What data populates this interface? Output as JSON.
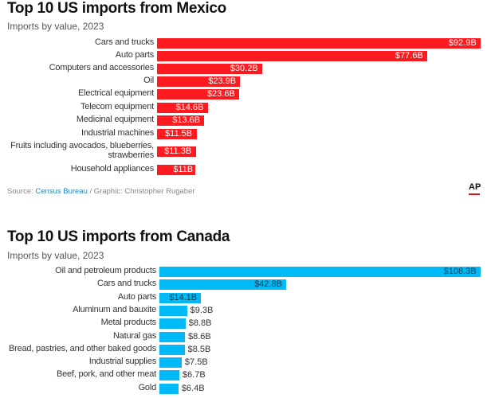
{
  "chart_data": [
    {
      "type": "bar",
      "orientation": "horizontal",
      "title": "Top 10 US imports from Mexico",
      "subtitle": "Imports by value, 2023",
      "color": "#fe1a1f",
      "label_color": "#ffffff",
      "categories": [
        "Cars and trucks",
        "Auto parts",
        "Computers and accessories",
        "Oil",
        "Electrical equipment",
        "Telecom equipment",
        "Medicinal equipment",
        "Industrial machines",
        "Fruits including avocados, blueberries, strawberries",
        "Household appliances"
      ],
      "values": [
        92.9,
        77.6,
        30.2,
        23.9,
        23.6,
        14.6,
        13.6,
        11.5,
        11.3,
        11
      ],
      "value_labels": [
        "$92.9B",
        "$77.6B",
        "$30.2B",
        "$23.9B",
        "$23.6B",
        "$14.6B",
        "$13.6B",
        "$11.5B",
        "$11.3B",
        "$11B"
      ],
      "unit": "billion USD"
    },
    {
      "type": "bar",
      "orientation": "horizontal",
      "title": "Top 10 US imports from Canada",
      "subtitle": "Imports by value, 2023",
      "color": "#00b9f7",
      "label_color": "#1a3a4a",
      "categories": [
        "Oil and petroleum products",
        "Cars and trucks",
        "Auto parts",
        "Aluminum and bauxite",
        "Metal products",
        "Natural gas",
        "Bread, pastries, and other baked goods",
        "Industrial supplies",
        "Beef, pork, and other meat",
        "Gold"
      ],
      "values": [
        108.3,
        42.8,
        14.1,
        9.3,
        8.8,
        8.6,
        8.5,
        7.5,
        6.7,
        6.4
      ],
      "value_labels": [
        "$108.3B",
        "$42.8B",
        "$14.1B",
        "$9.3B",
        "$8.8B",
        "$8.6B",
        "$8.5B",
        "$7.5B",
        "$6.7B",
        "$6.4B"
      ],
      "unit": "billion USD"
    }
  ],
  "source": {
    "prefix": "Source: ",
    "link": "Census Bureau",
    "suffix": " / Graphic: Christopher Rugaber"
  },
  "logo": "AP"
}
